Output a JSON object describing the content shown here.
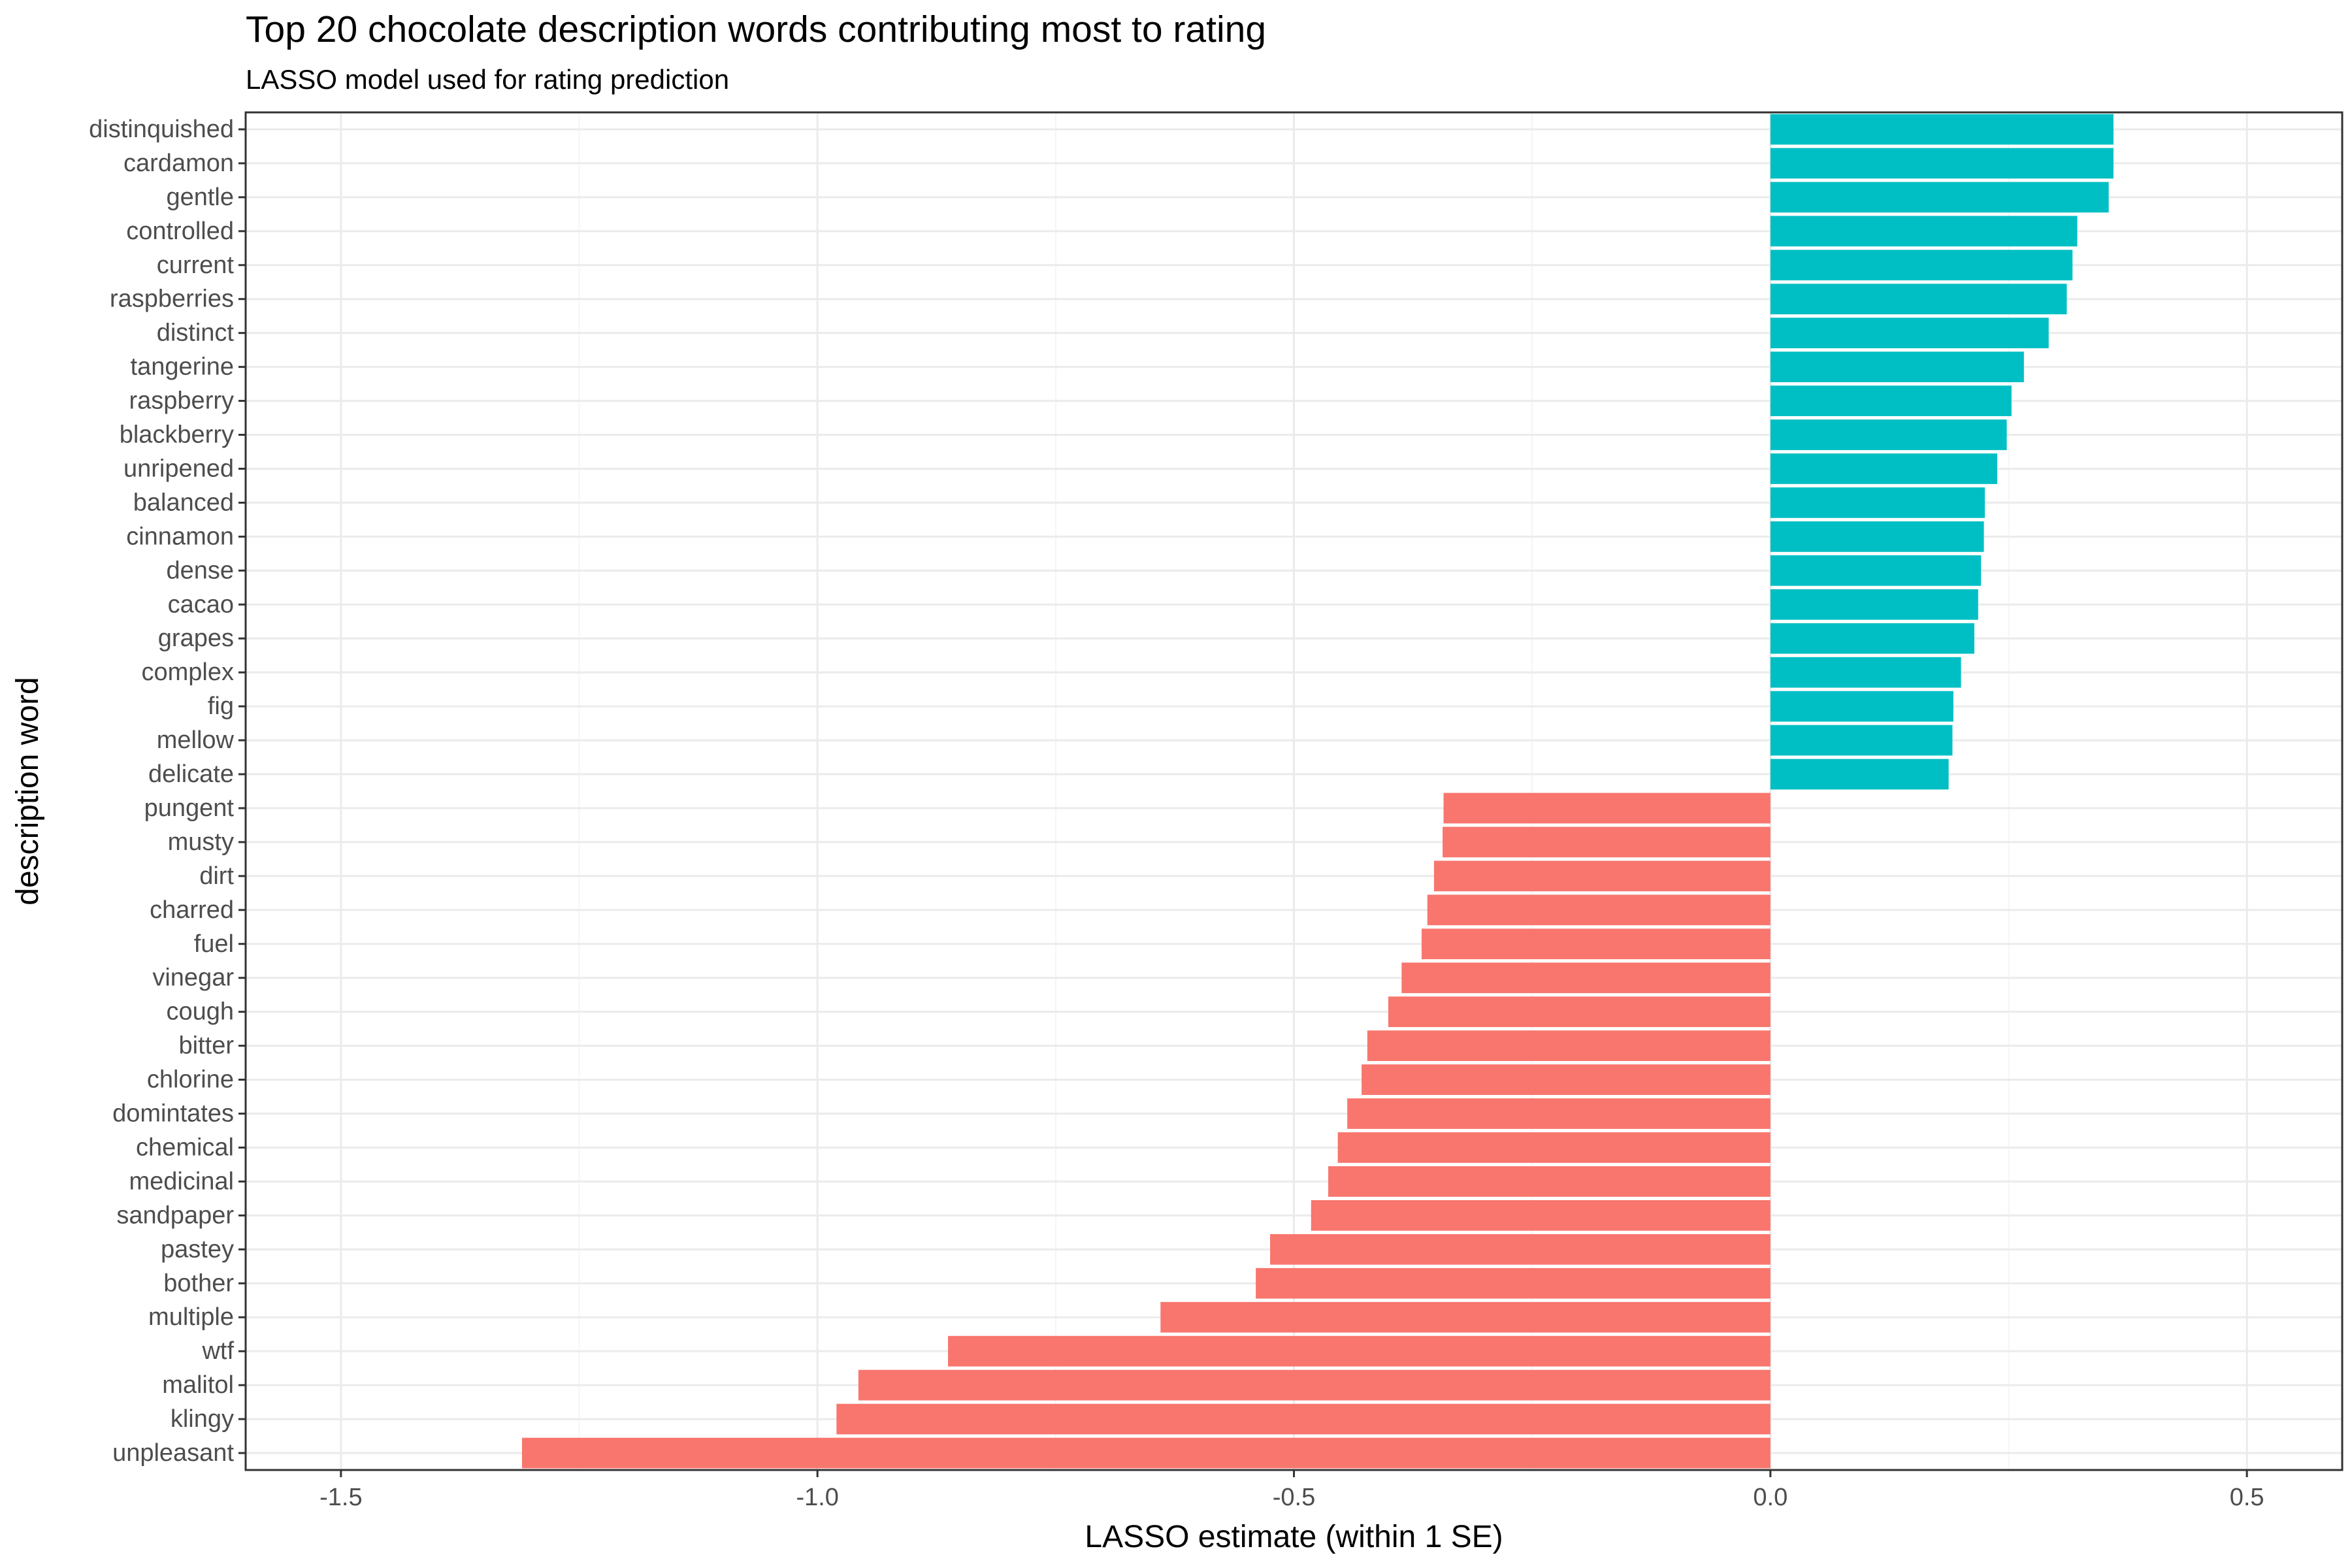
{
  "chart_data": {
    "type": "bar",
    "orientation": "horizontal",
    "title": "Top 20 chocolate description words contributing most to rating",
    "subtitle": "LASSO model used for rating prediction",
    "xlabel": "LASSO estimate (within 1 SE)",
    "ylabel": "description word",
    "xlim": [
      -1.6,
      0.6
    ],
    "xticks": [
      -1.5,
      -1.0,
      -0.5,
      0.0,
      0.5
    ],
    "xtick_labels": [
      "-1.5",
      "-1.0",
      "-0.5",
      "0.0",
      "0.5"
    ],
    "grid": true,
    "legend": "none",
    "colors": {
      "positive": "#00BFC4",
      "negative": "#F8766D",
      "grid_major": "#EBEBEB",
      "grid_minor": "#F5F5F5",
      "axis_text": "#4D4D4D"
    },
    "categories": [
      "distinquished",
      "cardamon",
      "gentle",
      "controlled",
      "current",
      "raspberries",
      "distinct",
      "tangerine",
      "raspberry",
      "blackberry",
      "unripened",
      "balanced",
      "cinnamon",
      "dense",
      "cacao",
      "grapes",
      "complex",
      "fig",
      "mellow",
      "delicate",
      "pungent",
      "musty",
      "dirt",
      "charred",
      "fuel",
      "vinegar",
      "cough",
      "bitter",
      "chlorine",
      "domintates",
      "chemical",
      "medicinal",
      "sandpaper",
      "pastey",
      "bother",
      "multiple",
      "wtf",
      "malitol",
      "klingy",
      "unpleasant"
    ],
    "values": [
      0.36,
      0.36,
      0.355,
      0.322,
      0.317,
      0.311,
      0.292,
      0.266,
      0.253,
      0.248,
      0.238,
      0.225,
      0.224,
      0.221,
      0.218,
      0.214,
      0.2,
      0.192,
      0.191,
      0.187,
      -0.343,
      -0.344,
      -0.353,
      -0.36,
      -0.366,
      -0.387,
      -0.401,
      -0.423,
      -0.429,
      -0.444,
      -0.454,
      -0.464,
      -0.482,
      -0.525,
      -0.54,
      -0.64,
      -0.863,
      -0.957,
      -0.98,
      -1.31
    ]
  }
}
